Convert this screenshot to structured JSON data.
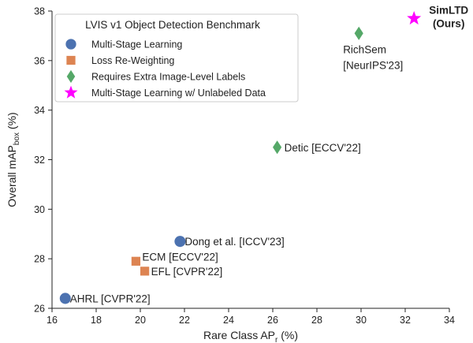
{
  "chart_data": {
    "type": "scatter",
    "title": "",
    "xlabel": "Rare Class AP",
    "xlabel_sub": "r",
    "xlabel_unit": " (%)",
    "ylabel": "Overall mAP",
    "ylabel_sub": "box",
    "ylabel_unit": " (%)",
    "xlim": [
      16,
      34
    ],
    "ylim": [
      26,
      38
    ],
    "xticks": [
      16,
      18,
      20,
      22,
      24,
      26,
      28,
      30,
      32,
      34
    ],
    "yticks": [
      26,
      28,
      30,
      32,
      34,
      36,
      38
    ],
    "grid": false,
    "legend": {
      "title": "LVIS v1 Object Detection Benchmark",
      "placement": "top-left"
    },
    "series": [
      {
        "name": "Multi-Stage Learning",
        "marker": "circle",
        "color": "#4C72B0",
        "points": [
          {
            "x": 16.6,
            "y": 26.4,
            "label": "AHRL [CVPR'22]"
          },
          {
            "x": 21.8,
            "y": 28.7,
            "label": "Dong et al. [ICCV'23]"
          }
        ]
      },
      {
        "name": "Loss Re-Weighting",
        "marker": "square",
        "color": "#DD8452",
        "points": [
          {
            "x": 19.8,
            "y": 27.9,
            "label": "ECM [ECCV'22]"
          },
          {
            "x": 20.2,
            "y": 27.5,
            "label": "EFL [CVPR'22]"
          }
        ]
      },
      {
        "name": "Requires Extra Image-Level Labels",
        "marker": "diamond",
        "color": "#55A868",
        "points": [
          {
            "x": 26.2,
            "y": 32.5,
            "label": "Detic [ECCV'22]"
          },
          {
            "x": 29.9,
            "y": 37.1,
            "label": "RichSem [NeurIPS'23]"
          }
        ]
      },
      {
        "name": "Multi-Stage Learning w/ Unlabeled Data",
        "marker": "star",
        "color": "#FF00FF",
        "points": [
          {
            "x": 32.4,
            "y": 37.7,
            "label": "SimLTD (Ours)"
          }
        ]
      }
    ]
  }
}
